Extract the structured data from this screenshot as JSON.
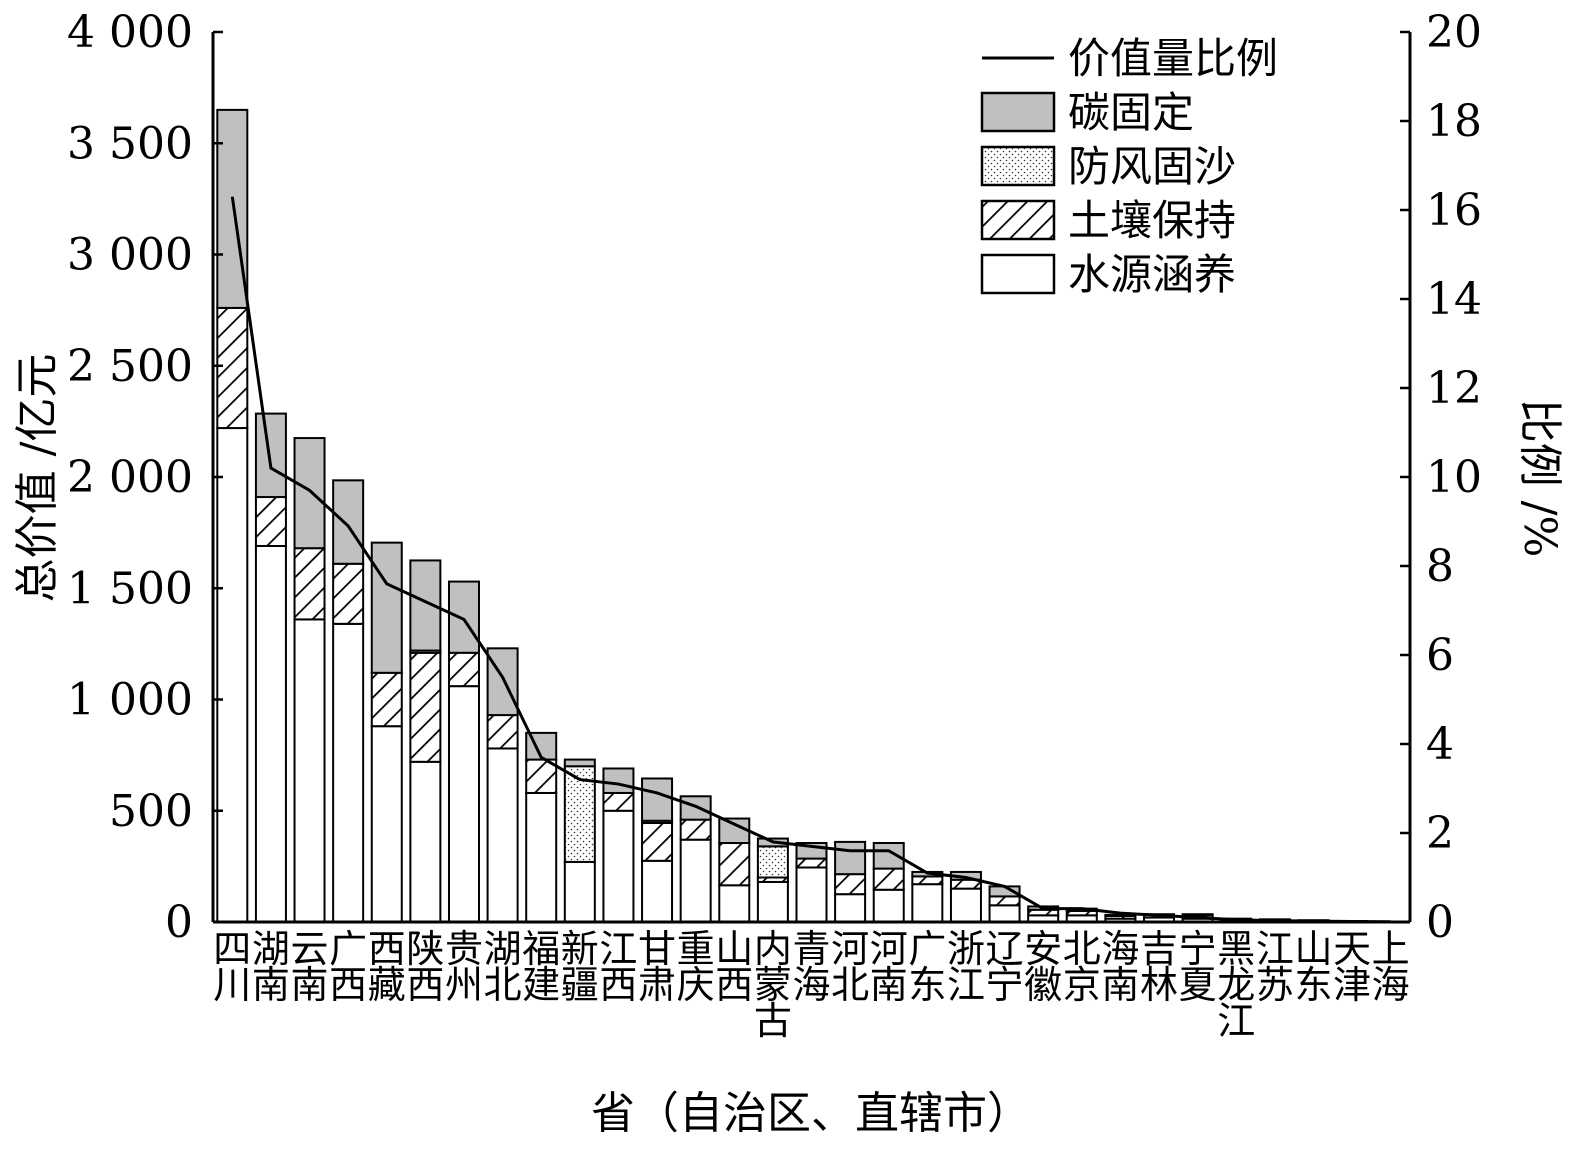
{
  "chart_data": {
    "type": "bar",
    "stacked": true,
    "xlabel": "省（自治区、直辖市）",
    "ylabel": "总价值 /亿元",
    "y2label": "比例 /%",
    "ylim": [
      0,
      4000
    ],
    "y2lim": [
      0,
      20
    ],
    "yticks": [
      "0",
      "500",
      "1 000",
      "1 500",
      "2 000",
      "2 500",
      "3 000",
      "3 500",
      "4 000"
    ],
    "y2ticks": [
      "0",
      "2",
      "4",
      "6",
      "8",
      "10",
      "12",
      "14",
      "16",
      "18",
      "20"
    ],
    "grid": false,
    "legend_position": "top-right",
    "categories": [
      "四川",
      "湖南",
      "云南",
      "广西",
      "西藏",
      "陕西",
      "贵州",
      "湖北",
      "福建",
      "新疆",
      "江西",
      "甘肃",
      "重庆",
      "山西",
      "内蒙古",
      "青海",
      "河北",
      "河南",
      "广东",
      "浙江",
      "辽宁",
      "安徽",
      "北京",
      "海南",
      "吉林",
      "宁夏",
      "黑龙江",
      "江苏",
      "山东",
      "天津",
      "上海"
    ],
    "series": [
      {
        "name": "水源涵养",
        "pattern": "white",
        "values": [
          2220,
          1690,
          1360,
          1340,
          880,
          720,
          1060,
          780,
          580,
          270,
          500,
          275,
          370,
          165,
          180,
          245,
          125,
          145,
          170,
          150,
          75,
          30,
          30,
          15,
          20,
          15,
          5,
          8,
          4,
          2,
          1
        ]
      },
      {
        "name": "土壤保持",
        "pattern": "hatch",
        "values": [
          540,
          220,
          320,
          270,
          240,
          490,
          150,
          150,
          150,
          0,
          80,
          170,
          90,
          190,
          20,
          40,
          90,
          95,
          35,
          40,
          40,
          25,
          20,
          12,
          12,
          15,
          5,
          2,
          2,
          1,
          0
        ]
      },
      {
        "name": "防风固沙",
        "pattern": "dots",
        "values": [
          0,
          0,
          0,
          0,
          0,
          10,
          0,
          0,
          0,
          430,
          0,
          10,
          0,
          0,
          140,
          0,
          0,
          0,
          0,
          0,
          0,
          0,
          0,
          0,
          0,
          0,
          0,
          0,
          0,
          0,
          0
        ]
      },
      {
        "name": "碳固定",
        "pattern": "gray",
        "values": [
          890,
          375,
          495,
          375,
          585,
          405,
          320,
          300,
          120,
          30,
          110,
          190,
          105,
          110,
          35,
          70,
          145,
          115,
          20,
          35,
          45,
          15,
          10,
          5,
          3,
          5,
          5,
          2,
          2,
          1,
          1
        ]
      }
    ],
    "line": {
      "name": "价值量比例",
      "axis": "right",
      "values": [
        16.3,
        10.2,
        9.7,
        8.9,
        7.6,
        7.2,
        6.8,
        5.5,
        3.7,
        3.2,
        3.1,
        2.9,
        2.6,
        2.2,
        1.8,
        1.7,
        1.6,
        1.6,
        1.1,
        1.0,
        0.8,
        0.3,
        0.3,
        0.2,
        0.15,
        0.1,
        0.05,
        0.03,
        0.02,
        0.01,
        0.005
      ]
    }
  }
}
